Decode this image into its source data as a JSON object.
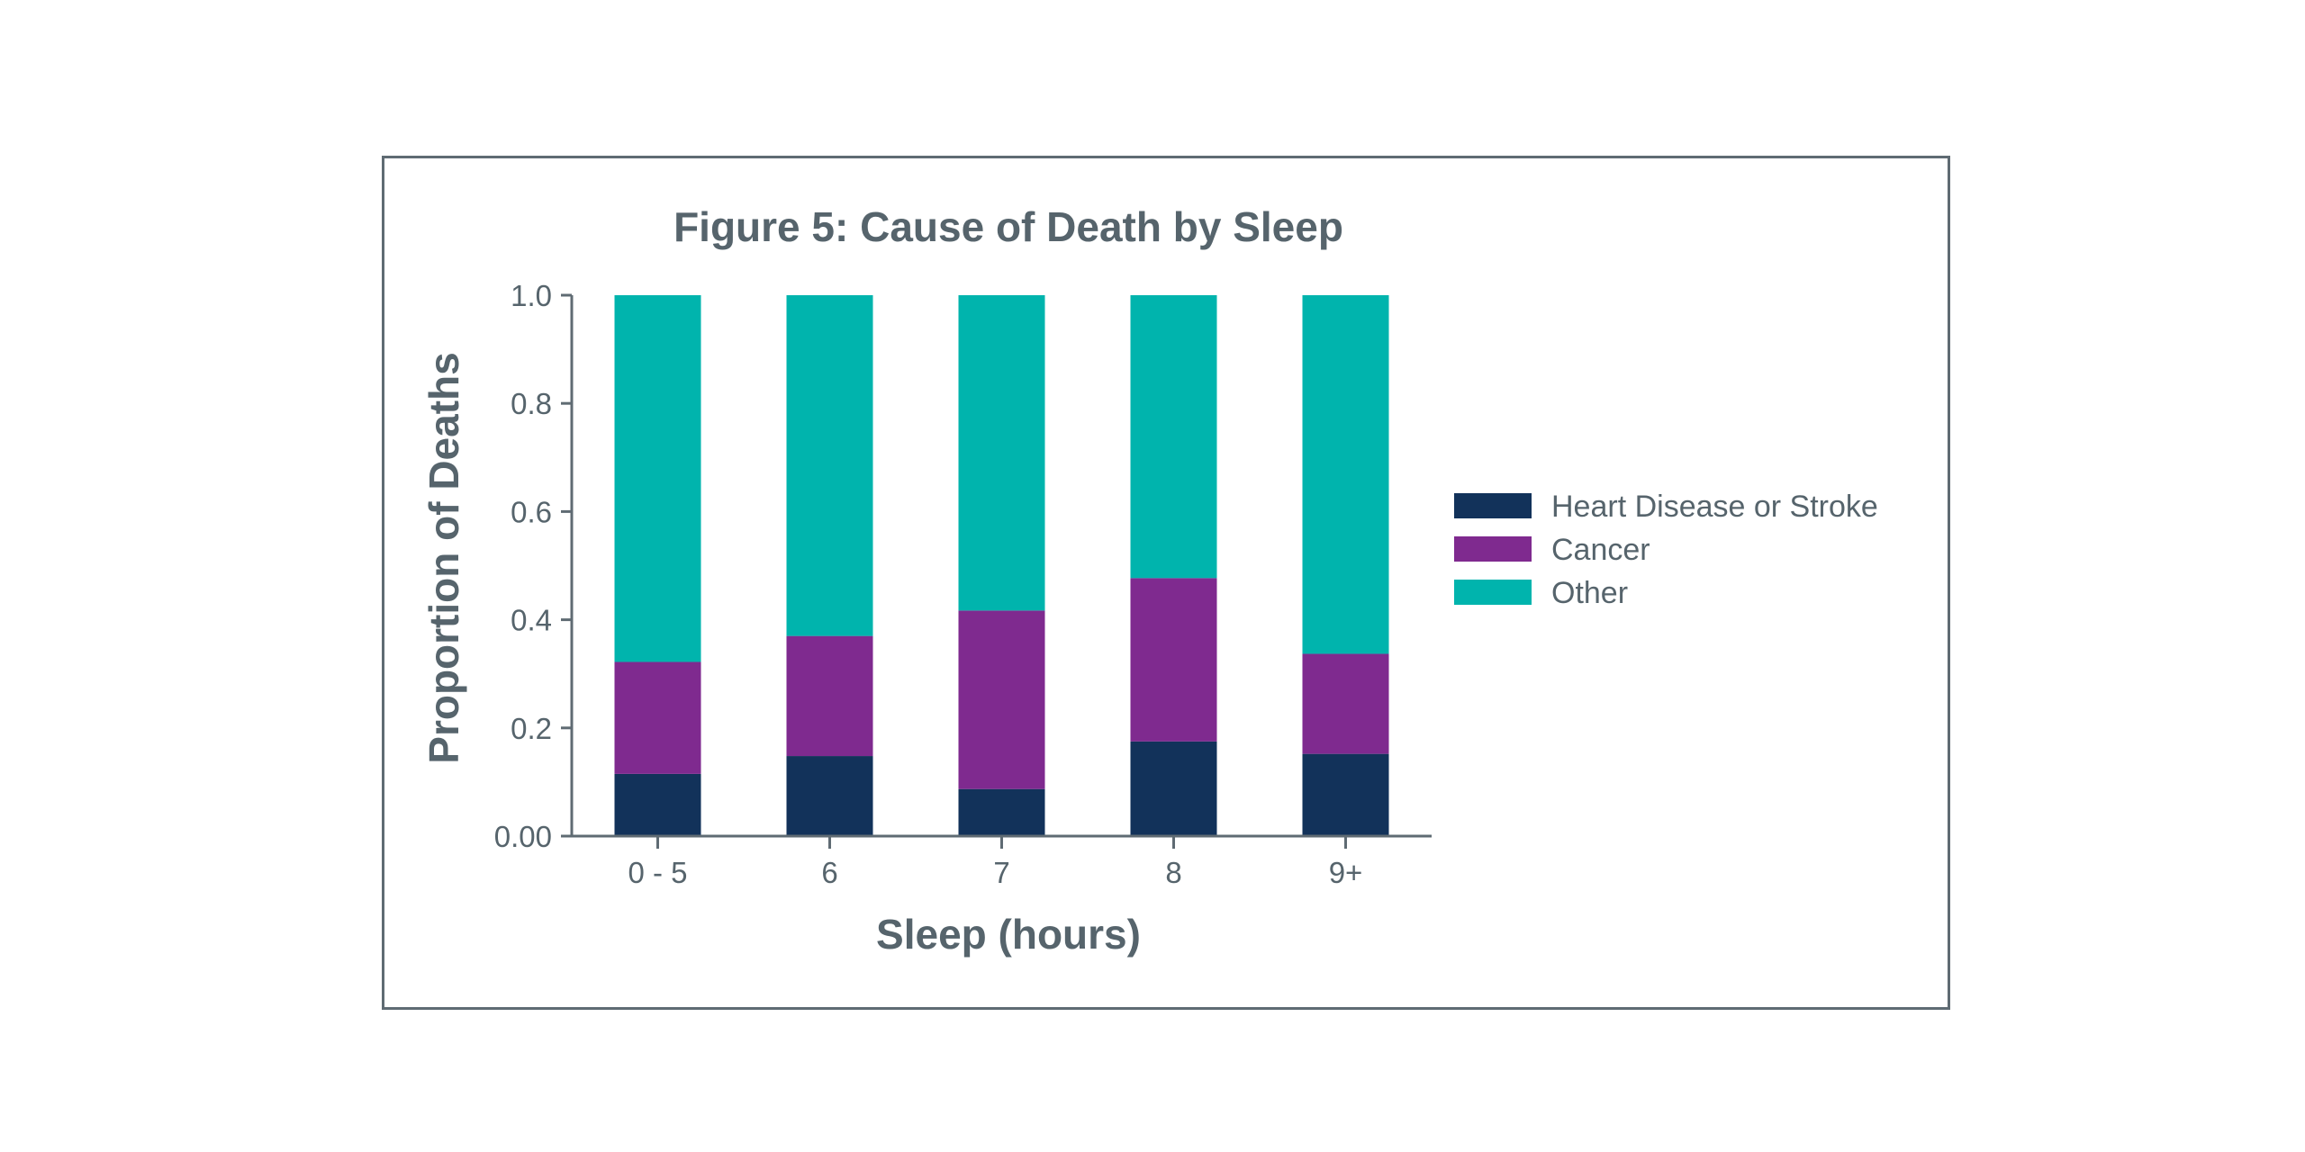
{
  "chart_data": {
    "type": "bar",
    "stacked": true,
    "title": "Figure 5: Cause of Death by Sleep",
    "xlabel": "Sleep (hours)",
    "ylabel": "Proportion of Deaths",
    "categories": [
      "0 - 5",
      "6",
      "7",
      "8",
      "9+"
    ],
    "ylim": [
      0,
      1.0
    ],
    "yticks": [
      "0.00",
      "0.2",
      "0.4",
      "0.6",
      "0.8",
      "1.0"
    ],
    "ytick_values": [
      0,
      0.2,
      0.4,
      0.6,
      0.8,
      1.0
    ],
    "series": [
      {
        "name": "Heart Disease or Stroke",
        "color": "#12325a",
        "values": [
          0.115,
          0.148,
          0.087,
          0.175,
          0.152
        ]
      },
      {
        "name": "Cancer",
        "color": "#7f2a8f",
        "values": [
          0.207,
          0.222,
          0.33,
          0.302,
          0.185
        ]
      },
      {
        "name": "Other",
        "color": "#00b4ad",
        "values": [
          0.678,
          0.63,
          0.583,
          0.523,
          0.663
        ]
      }
    ],
    "legend_position": "right",
    "grid": false
  }
}
